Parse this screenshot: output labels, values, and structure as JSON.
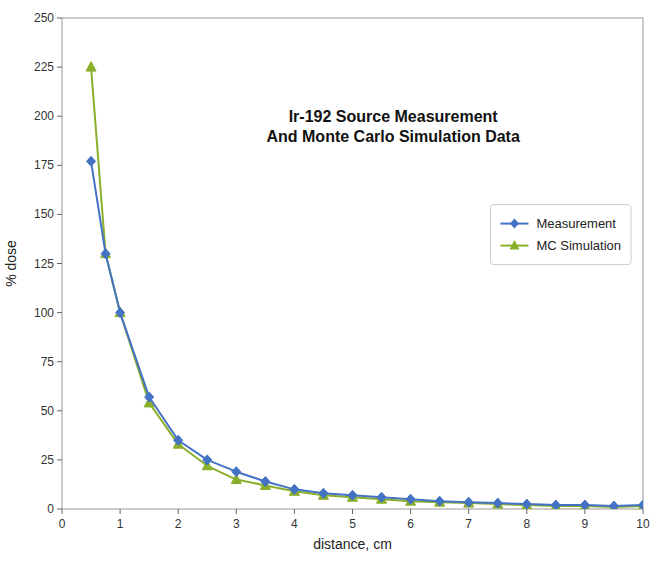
{
  "chart_data": {
    "type": "line",
    "title": "Ir-192 Source Measurement",
    "subtitle": "And Monte Carlo Simulation Data",
    "x_label": "distance, cm",
    "y_label": "% dose",
    "x": [
      0.5,
      0.75,
      1.0,
      1.5,
      2.0,
      2.5,
      3.0,
      3.5,
      4.0,
      4.5,
      5.0,
      5.5,
      6.0,
      6.5,
      7.0,
      7.5,
      8.0,
      8.5,
      9.0,
      9.5,
      10.0
    ],
    "series": [
      {
        "name": "Measurement",
        "color": "#4472C4",
        "marker": "diamond",
        "values": [
          177,
          130,
          100,
          57,
          35,
          25,
          19,
          14,
          10,
          8,
          7,
          6,
          5,
          4,
          3.5,
          3,
          2.5,
          2,
          2,
          1.5,
          2
        ]
      },
      {
        "name": "MC Simulation",
        "color": "#8AAF2A",
        "marker": "triangle",
        "values": [
          225,
          130,
          100,
          54,
          33,
          22,
          15,
          12,
          9,
          7,
          6,
          5,
          4,
          3.5,
          3,
          2.5,
          2,
          1.5,
          1.5,
          1,
          1.5
        ]
      }
    ],
    "xlim": [
      0,
      10
    ],
    "ylim": [
      0,
      250
    ],
    "xticks": [
      0,
      1,
      2,
      3,
      4,
      5,
      6,
      7,
      8,
      9,
      10
    ],
    "yticks": [
      0,
      25,
      50,
      75,
      100,
      125,
      150,
      175,
      200,
      225,
      250
    ],
    "grid": false,
    "legend": "upper right"
  }
}
